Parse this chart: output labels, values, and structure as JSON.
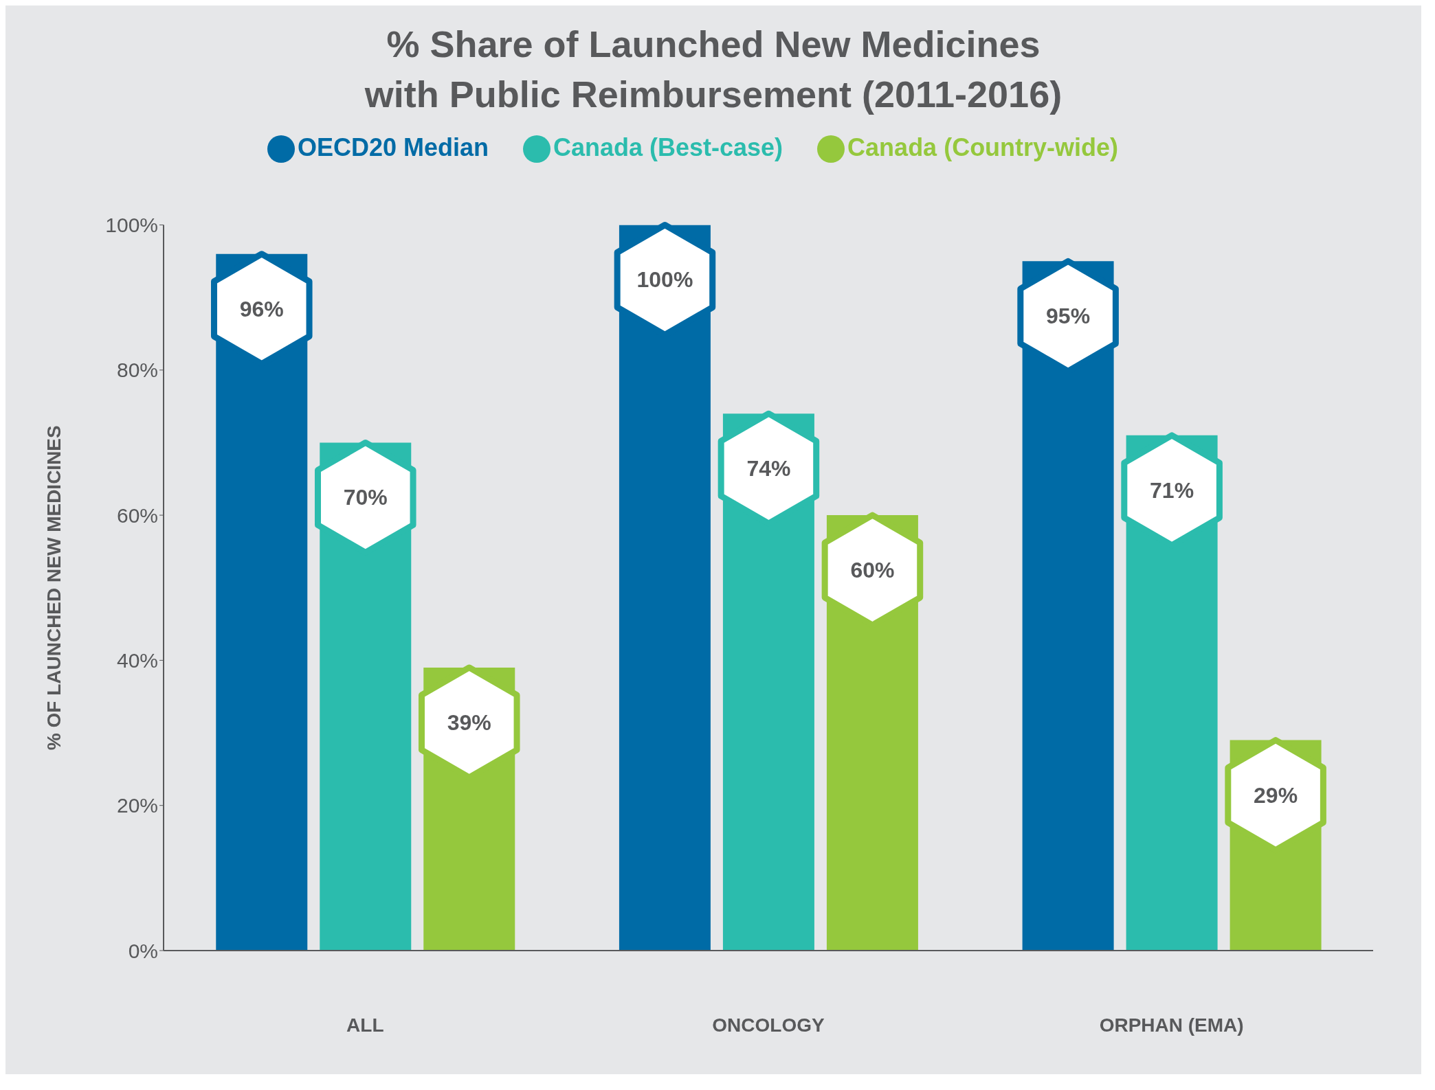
{
  "chart_data": {
    "type": "bar",
    "title": "% Share of Launched New Medicines\nwith Public Reimbursement (2011-2016)",
    "ylabel": "% OF LAUNCHED NEW MEDICINES",
    "categories": [
      "ALL",
      "ONCOLOGY",
      "ORPHAN (EMA)"
    ],
    "series": [
      {
        "name": "OECD20 Median",
        "color": "#006ba6",
        "values": [
          96,
          100,
          95
        ],
        "value_labels": [
          "96%",
          "100%",
          "95%"
        ]
      },
      {
        "name": "Canada (Best-case)",
        "color": "#2bbcad",
        "values": [
          70,
          74,
          71
        ],
        "value_labels": [
          "70%",
          "74%",
          "71%"
        ]
      },
      {
        "name": "Canada (Country-wide)",
        "color": "#95c83d",
        "values": [
          39,
          60,
          29
        ],
        "value_labels": [
          "39%",
          "60%",
          "29%"
        ]
      }
    ],
    "ylim": [
      0,
      100
    ],
    "yticks": [
      {
        "value": 0,
        "label": "0%"
      },
      {
        "value": 20,
        "label": "20%"
      },
      {
        "value": 40,
        "label": "40%"
      },
      {
        "value": 60,
        "label": "60%"
      },
      {
        "value": 80,
        "label": "80%"
      },
      {
        "value": 100,
        "label": "100%"
      }
    ],
    "grid": false,
    "legend": "top"
  }
}
